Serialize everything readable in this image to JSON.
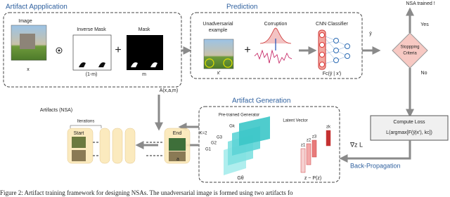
{
  "application": {
    "title": "Artifact Appplication",
    "image_label": "Image",
    "inverse_mask_label": "Inverse Mask",
    "mask_label": "Mask",
    "image_symbol": "x",
    "inverse_mask_symbol": "(1-m)",
    "mask_symbol": "m",
    "output": "A(x,a,m)"
  },
  "prediction": {
    "title": "Prediction",
    "example_label": [
      "Unadversarial",
      "example"
    ],
    "corruption_label": "Corruption",
    "classifier_label": "CNN Classifier",
    "example_symbol": "x'",
    "classifier_symbol": "Fc(ȳ | x')",
    "output_symbol": "ȳ"
  },
  "decision": {
    "label": [
      "Stoppping",
      "Criteria"
    ],
    "result": "NSA trained !",
    "yes": "Yes",
    "no": "No"
  },
  "loss": {
    "title": "Compute Loss",
    "formula": "L(argmax[F(ȳ|x'), kc])",
    "gradient": "∇z L",
    "backprop": "Back-Propagation"
  },
  "generation": {
    "title": "Artifact Generation",
    "generator_label": "Pre-trained Generator",
    "latent_label": "Latent Vector",
    "k": "K=2",
    "layers": [
      "G1",
      "G2",
      "G3",
      "Gk"
    ],
    "generator_symbol": "Gθ",
    "latent_entries": [
      "z1",
      "z2",
      "z3",
      "zk"
    ],
    "latent_symbol": "z ~ P(z)"
  },
  "artifacts": {
    "title": "Artifacts (NSA)",
    "iterations": "Iterations",
    "start": "Start",
    "end": "End",
    "symbol": "a"
  },
  "caption": "Figure 2: Artifact training framework for designing NSAs. The unadversarial image is formed using two artifacts fo"
}
